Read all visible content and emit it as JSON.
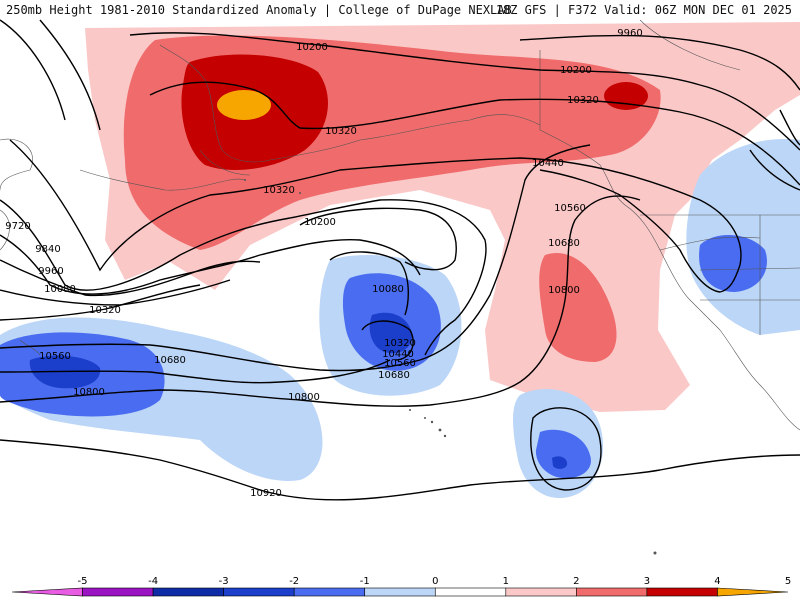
{
  "header": {
    "title_left": "250mb Height 1981-2010 Standardized Anomaly | College of DuPage NEXLAB",
    "title_right": "18Z GFS | F372 Valid: 06Z MON DEC 01 2025"
  },
  "contour_labels": [
    "9960",
    "10200",
    "10200",
    "10320",
    "10320",
    "10320",
    "10440",
    "10560",
    "10680",
    "10800",
    "9720",
    "9840",
    "9960",
    "10080",
    "10320",
    "10200",
    "10080",
    "10320",
    "10440",
    "10560",
    "10680",
    "10560",
    "10680",
    "10800",
    "10800",
    "10920"
  ],
  "colorbar": {
    "ticks": [
      "-5",
      "-4",
      "-3",
      "-2",
      "-1",
      "0",
      "1",
      "2",
      "3",
      "4",
      "5"
    ],
    "colors": [
      "#e75ce3",
      "#9a14c4",
      "#0d2ca6",
      "#1b3ecb",
      "#4a6cf0",
      "#bcd6f7",
      "#ffffff",
      "#fbc8c8",
      "#f06b6b",
      "#c40000",
      "#f7a600"
    ]
  }
}
